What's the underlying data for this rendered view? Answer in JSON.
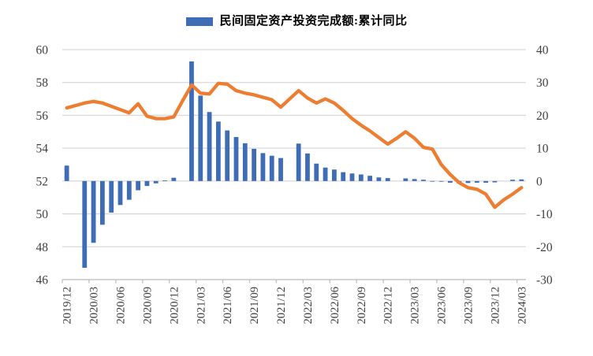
{
  "legend": {
    "label": "民间固定资产投资完成额:累计同比",
    "swatch_color": "#3F6DB5"
  },
  "chart_data": {
    "type": "combo",
    "title": "",
    "grid": "horizontal",
    "categories": [
      "2019/12",
      "2020/01",
      "2020/02",
      "2020/03",
      "2020/04",
      "2020/05",
      "2020/06",
      "2020/07",
      "2020/08",
      "2020/09",
      "2020/10",
      "2020/11",
      "2020/12",
      "2021/01",
      "2021/02",
      "2021/03",
      "2021/04",
      "2021/05",
      "2021/06",
      "2021/07",
      "2021/08",
      "2021/09",
      "2021/10",
      "2021/11",
      "2021/12",
      "2022/01",
      "2022/02",
      "2022/03",
      "2022/04",
      "2022/05",
      "2022/06",
      "2022/07",
      "2022/08",
      "2022/09",
      "2022/10",
      "2022/11",
      "2022/12",
      "2023/01",
      "2023/02",
      "2023/03",
      "2023/04",
      "2023/05",
      "2023/06",
      "2023/07",
      "2023/08",
      "2023/09",
      "2023/10",
      "2023/11",
      "2023/12",
      "2024/01",
      "2024/02",
      "2024/03"
    ],
    "x_tick_labels": [
      "2019/12",
      "2020/03",
      "2020/06",
      "2020/09",
      "2020/12",
      "2021/03",
      "2021/06",
      "2021/09",
      "2021/12",
      "2022/03",
      "2022/06",
      "2022/09",
      "2022/12",
      "2023/03",
      "2023/06",
      "2023/09",
      "2023/12",
      "2024/03"
    ],
    "x_label_every": 3,
    "left_axis": {
      "min": 46,
      "max": 60,
      "ticks": [
        46,
        48,
        50,
        52,
        54,
        56,
        58,
        60
      ]
    },
    "right_axis": {
      "min": -30,
      "max": 40,
      "ticks": [
        -30,
        -20,
        -10,
        0,
        10,
        20,
        30,
        40
      ]
    },
    "series": [
      {
        "name": "民间固定资产投资完成额:累计同比",
        "type": "bar",
        "axis": "right",
        "color": "#3F6DB5",
        "values": [
          4.7,
          null,
          -26.4,
          -18.8,
          -13.3,
          -9.6,
          -7.3,
          -5.7,
          -2.8,
          -1.5,
          -0.7,
          0.2,
          1.0,
          null,
          36.4,
          26.0,
          21.0,
          18.1,
          15.4,
          13.4,
          11.5,
          9.8,
          8.5,
          7.7,
          7.0,
          null,
          11.4,
          8.4,
          5.3,
          4.1,
          3.5,
          2.7,
          2.3,
          2.0,
          1.6,
          1.1,
          0.9,
          null,
          0.8,
          0.6,
          0.4,
          -0.1,
          -0.2,
          -0.5,
          -0.7,
          -0.6,
          -0.5,
          -0.5,
          -0.4,
          null,
          0.4,
          0.5
        ]
      },
      {
        "name": "line-series-left-axis",
        "type": "line",
        "axis": "left",
        "color": "#EC7D31",
        "values": [
          56.45,
          56.6,
          56.75,
          56.85,
          56.75,
          56.55,
          56.35,
          56.15,
          56.7,
          55.95,
          55.8,
          55.8,
          55.9,
          56.9,
          57.85,
          57.35,
          57.3,
          57.95,
          57.9,
          57.5,
          57.35,
          57.25,
          57.1,
          56.95,
          56.5,
          57.0,
          57.5,
          57.05,
          56.75,
          57.0,
          56.75,
          56.3,
          55.8,
          55.4,
          55.05,
          54.65,
          54.25,
          54.6,
          55.0,
          54.6,
          54.05,
          53.95,
          53.0,
          52.4,
          51.9,
          51.6,
          51.5,
          51.2,
          50.4,
          50.85,
          51.2,
          51.6
        ]
      }
    ],
    "colors": {
      "gridline": "#D9D9D9",
      "axis_line": "#BFBFBF",
      "tick_text": "#404040"
    }
  }
}
